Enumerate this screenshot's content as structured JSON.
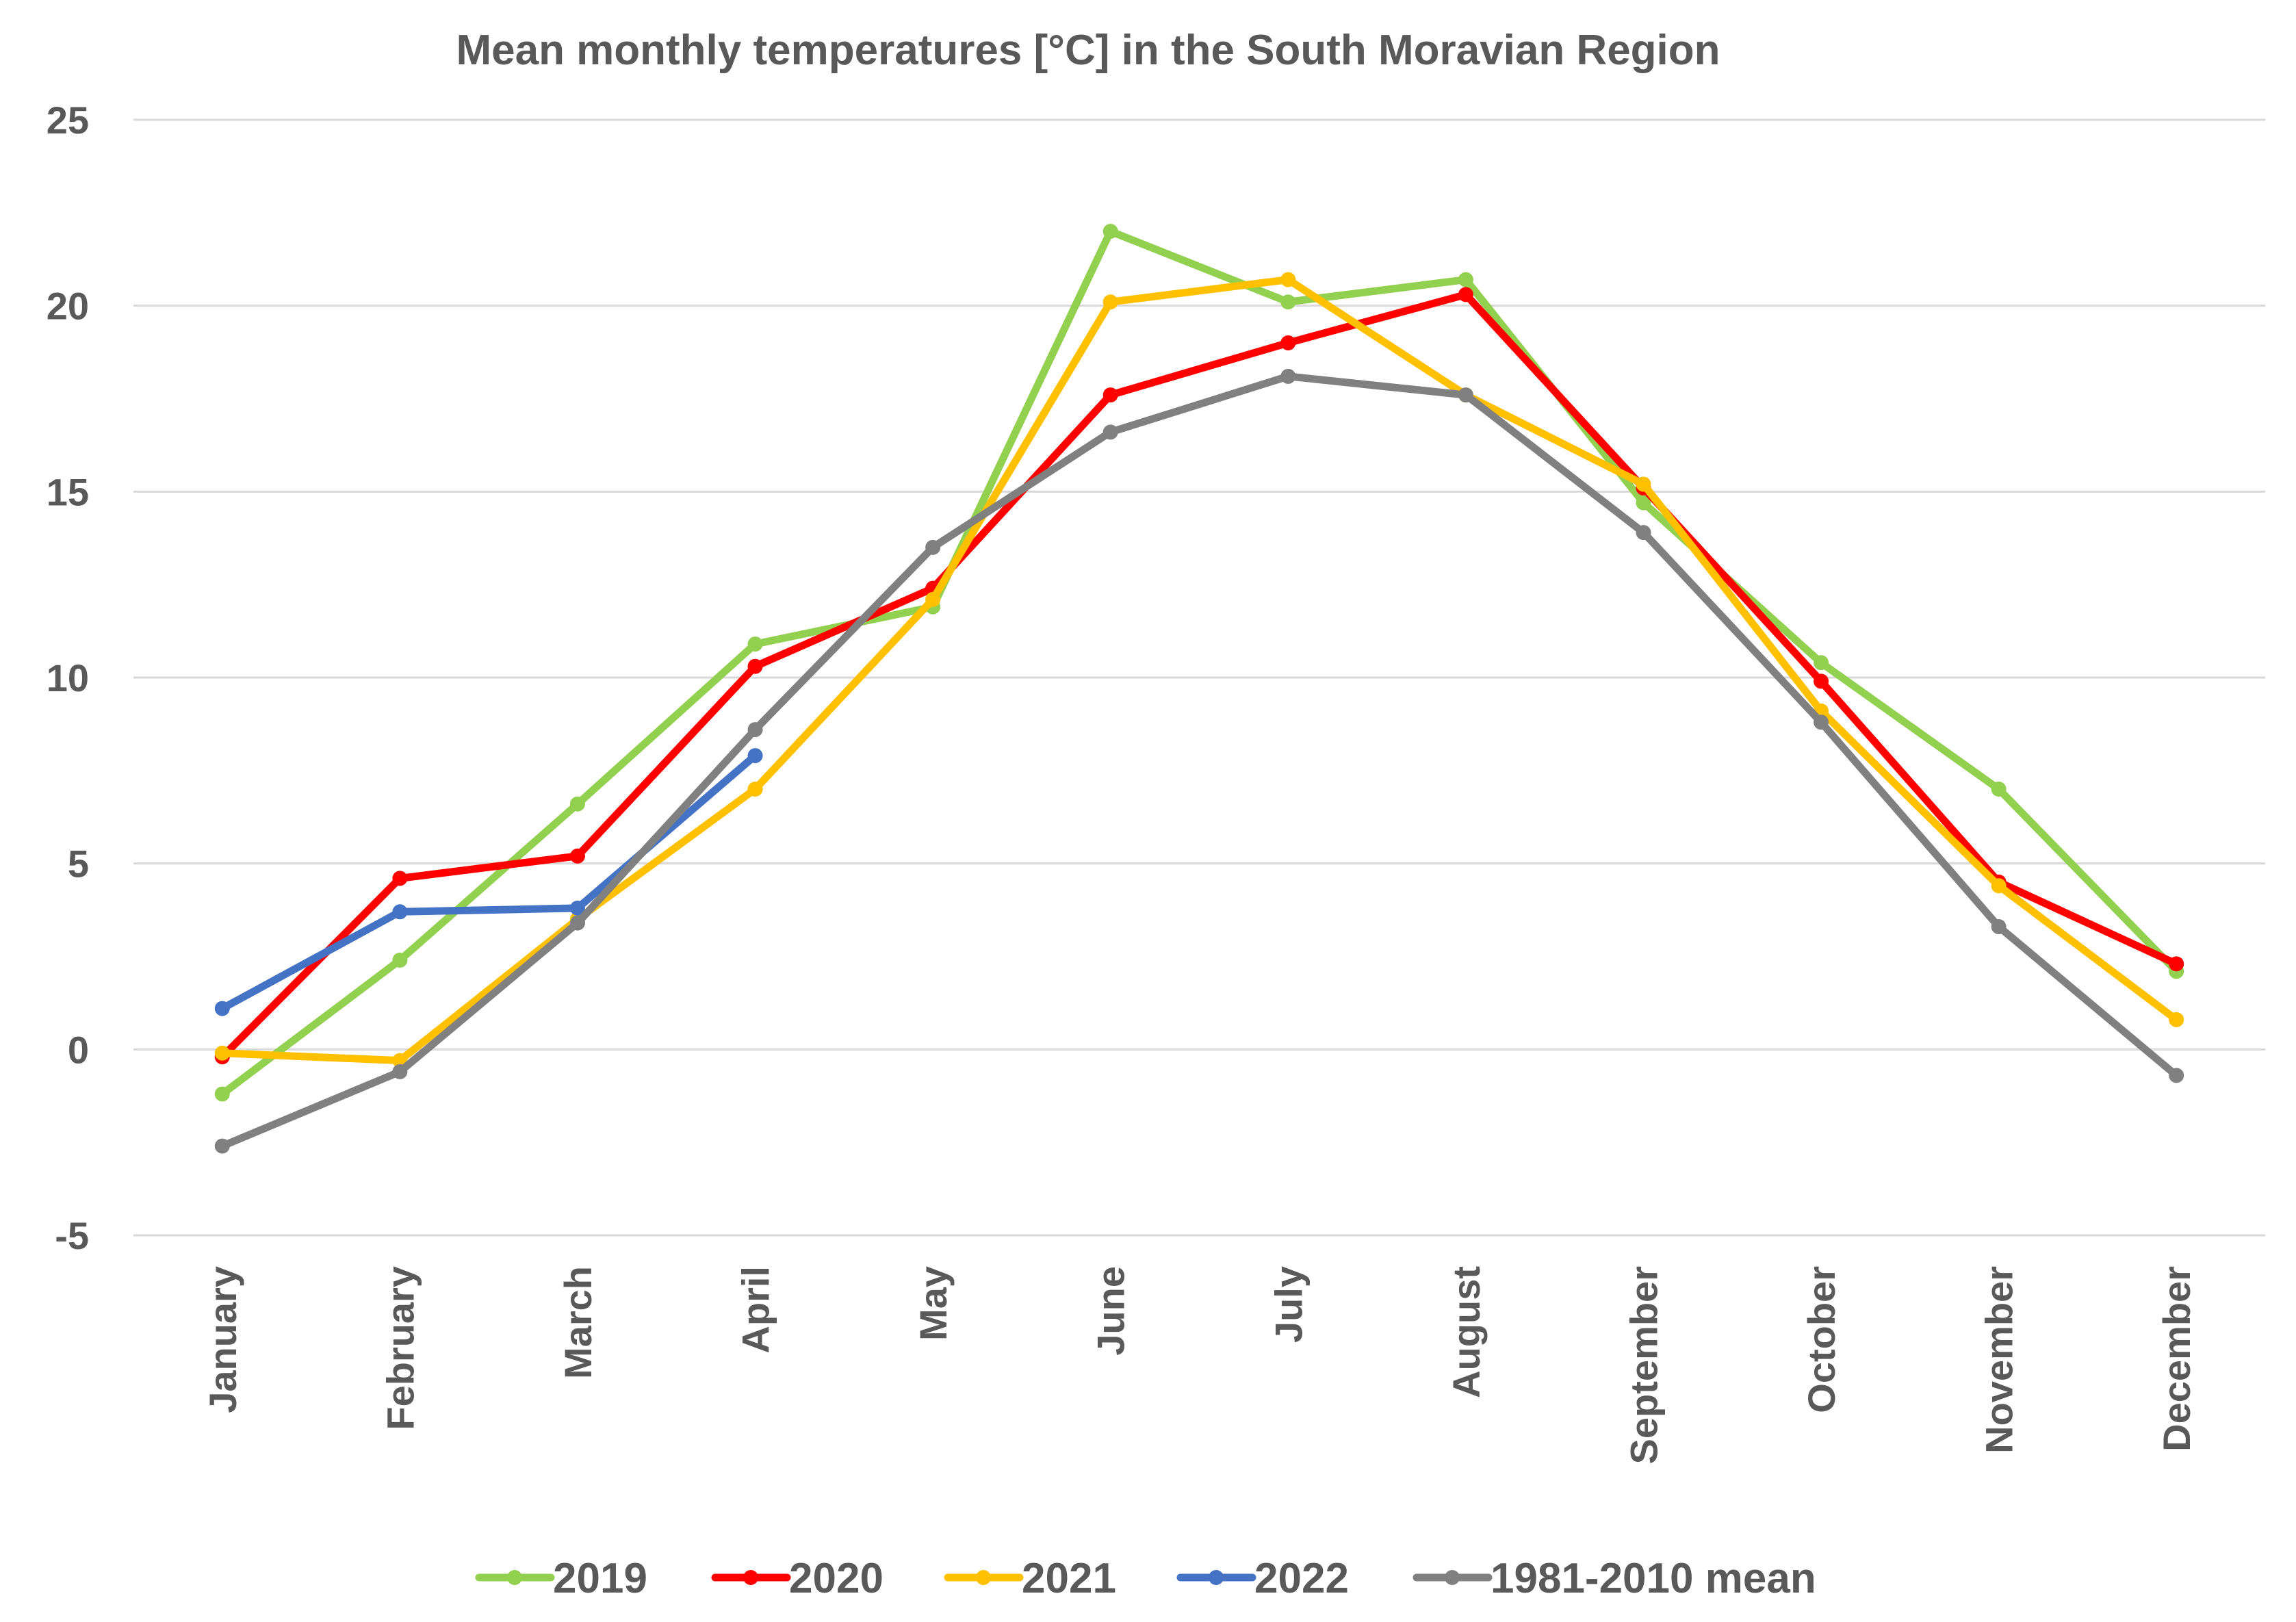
{
  "chart_data": {
    "type": "line",
    "title": "Mean monthly temperatures [°C] in the South Moravian Region",
    "xlabel": "",
    "ylabel": "",
    "ylim": [
      -5,
      25
    ],
    "yticks": [
      -5,
      0,
      5,
      10,
      15,
      20,
      25
    ],
    "ytick_labels": [
      "-5",
      "0",
      "5",
      "10",
      "15",
      "20",
      "25"
    ],
    "grid": true,
    "legend_position": "bottom",
    "categories": [
      "January",
      "February",
      "March",
      "April",
      "May",
      "June",
      "July",
      "August",
      "September",
      "October",
      "November",
      "December"
    ],
    "series": [
      {
        "name": "2019",
        "color": "#92d050",
        "values": [
          -1.2,
          2.4,
          6.6,
          10.9,
          11.9,
          22.0,
          20.1,
          20.7,
          14.7,
          10.4,
          7.0,
          2.1
        ]
      },
      {
        "name": "2020",
        "color": "#ff0000",
        "values": [
          -0.2,
          4.6,
          5.2,
          10.3,
          12.4,
          17.6,
          19.0,
          20.3,
          15.1,
          9.9,
          4.5,
          2.3
        ]
      },
      {
        "name": "2021",
        "color": "#ffc000",
        "values": [
          -0.1,
          -0.3,
          3.5,
          7.0,
          12.1,
          20.1,
          20.7,
          17.6,
          15.2,
          9.1,
          4.4,
          0.8
        ]
      },
      {
        "name": "2022",
        "color": "#4472c4",
        "values": [
          1.1,
          3.7,
          3.8,
          7.9,
          null,
          null,
          null,
          null,
          null,
          null,
          null,
          null
        ]
      },
      {
        "name": "1981-2010 mean",
        "color": "#808080",
        "values": [
          -2.6,
          -0.6,
          3.4,
          8.6,
          13.5,
          16.6,
          18.1,
          17.6,
          13.9,
          8.8,
          3.3,
          -0.7
        ]
      }
    ]
  }
}
